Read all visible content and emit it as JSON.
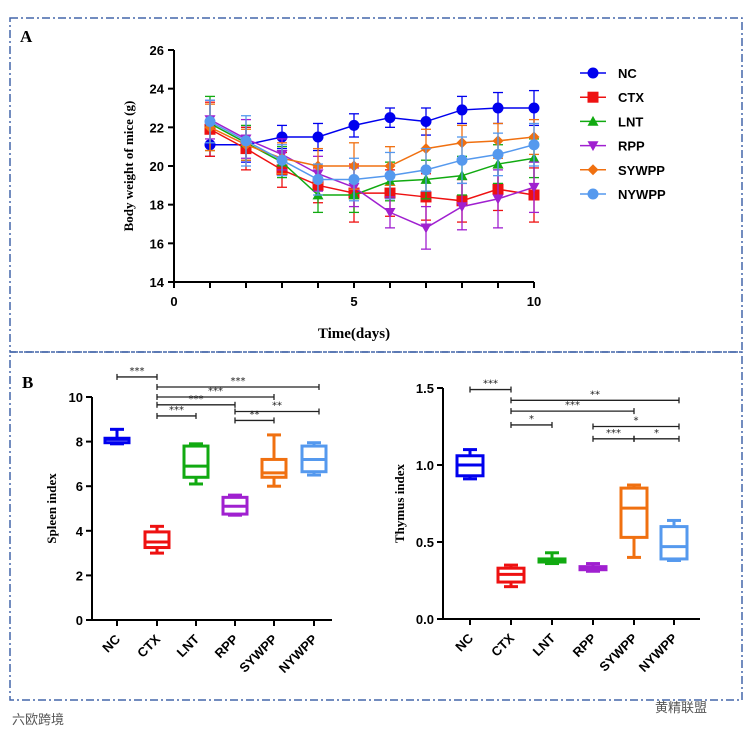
{
  "panel_labels": [
    "A",
    "B"
  ],
  "watermarks": {
    "left": "六欧跨境",
    "right": "黄精联盟"
  },
  "colors": {
    "NC": "#0000ee",
    "CTX": "#ee1111",
    "LNT": "#11aa11",
    "RPP": "#a020d0",
    "SYWPP": "#f07010",
    "NYWPP": "#5599ee",
    "frame": "#4466aa"
  },
  "chart_data": [
    {
      "type": "line",
      "panel": "A",
      "title": "",
      "xlabel": "Time(days)",
      "ylabel": "Body weight of mice (g)",
      "xlim": [
        0,
        10
      ],
      "ylim": [
        14,
        26
      ],
      "xticks": [
        0,
        5,
        10
      ],
      "yticks": [
        14,
        16,
        18,
        20,
        22,
        24,
        26
      ],
      "legend_position": "right",
      "x": [
        1,
        2,
        3,
        4,
        5,
        6,
        7,
        8,
        9,
        10
      ],
      "series": [
        {
          "name": "NC",
          "marker": "circle",
          "values": [
            21.1,
            21.1,
            21.5,
            21.5,
            22.1,
            22.5,
            22.3,
            22.9,
            23.0,
            23.0
          ],
          "error": [
            0.6,
            0.9,
            0.6,
            0.7,
            0.6,
            0.5,
            0.7,
            0.7,
            0.8,
            0.9
          ]
        },
        {
          "name": "CTX",
          "marker": "square",
          "values": [
            21.9,
            20.9,
            19.8,
            19.0,
            18.6,
            18.6,
            18.4,
            18.2,
            18.8,
            18.5
          ],
          "error": [
            1.4,
            1.1,
            0.9,
            0.9,
            1.5,
            1.2,
            1.2,
            1.1,
            1.1,
            1.4
          ]
        },
        {
          "name": "LNT",
          "marker": "triangle-up",
          "values": [
            22.2,
            21.2,
            20.2,
            18.5,
            18.5,
            19.2,
            19.3,
            19.5,
            20.1,
            20.4
          ],
          "error": [
            1.4,
            0.9,
            0.8,
            0.9,
            0.9,
            1.0,
            1.0,
            1.0,
            1.0,
            1.0
          ]
        },
        {
          "name": "RPP",
          "marker": "triangle-down",
          "values": [
            22.4,
            21.4,
            20.6,
            19.6,
            18.9,
            17.6,
            16.8,
            17.9,
            18.3,
            18.9
          ],
          "error": [
            1.0,
            1.0,
            0.8,
            0.9,
            1.0,
            0.8,
            1.1,
            1.2,
            1.5,
            1.3
          ]
        },
        {
          "name": "SYWPP",
          "marker": "diamond",
          "values": [
            22.0,
            21.1,
            20.4,
            20.0,
            20.0,
            20.0,
            20.9,
            21.2,
            21.3,
            21.5
          ],
          "error": [
            1.2,
            0.8,
            0.8,
            0.9,
            1.2,
            1.0,
            1.0,
            0.9,
            0.9,
            0.9
          ]
        },
        {
          "name": "NYWPP",
          "marker": "circle",
          "values": [
            22.3,
            21.3,
            20.3,
            19.3,
            19.3,
            19.5,
            19.8,
            20.3,
            20.6,
            21.1
          ],
          "error": [
            1.1,
            1.3,
            0.8,
            0.8,
            1.1,
            1.2,
            1.1,
            1.2,
            1.1,
            1.1
          ]
        }
      ]
    },
    {
      "type": "box",
      "panel": "B-left",
      "ylabel": "Spleen index",
      "ylim": [
        0,
        10
      ],
      "yticks": [
        0,
        2,
        4,
        6,
        8,
        10
      ],
      "categories": [
        "NC",
        "CTX",
        "LNT",
        "RPP",
        "SYWPP",
        "NYWPP"
      ],
      "boxes": [
        {
          "min": 7.9,
          "q1": 7.95,
          "median": 8.1,
          "q3": 8.15,
          "max": 8.55
        },
        {
          "min": 3.0,
          "q1": 3.25,
          "median": 3.5,
          "q3": 3.95,
          "max": 4.2
        },
        {
          "min": 6.1,
          "q1": 6.4,
          "median": 6.9,
          "q3": 7.8,
          "max": 7.9
        },
        {
          "min": 4.7,
          "q1": 4.75,
          "median": 5.1,
          "q3": 5.5,
          "max": 5.6
        },
        {
          "min": 6.0,
          "q1": 6.4,
          "median": 6.6,
          "q3": 7.2,
          "max": 8.3
        },
        {
          "min": 6.5,
          "q1": 6.65,
          "median": 7.2,
          "q3": 7.8,
          "max": 7.95
        }
      ],
      "significance": [
        {
          "from": 0,
          "to": 1,
          "label": "***",
          "level": 10.9
        },
        {
          "from": 1,
          "to": 5,
          "label": "***",
          "level": 10.45
        },
        {
          "from": 1,
          "to": 4,
          "label": "***",
          "level": 10.0
        },
        {
          "from": 1,
          "to": 3,
          "label": "***",
          "level": 9.65
        },
        {
          "from": 3,
          "to": 5,
          "label": "**",
          "level": 9.35
        },
        {
          "from": 1,
          "to": 2,
          "label": "***",
          "level": 9.15
        },
        {
          "from": 3,
          "to": 4,
          "label": "**",
          "level": 8.95
        }
      ]
    },
    {
      "type": "box",
      "panel": "B-right",
      "ylabel": "Thymus index",
      "ylim": [
        0,
        1.5
      ],
      "yticks": [
        "0.0",
        "0.5",
        "1.0",
        "1.5"
      ],
      "categories": [
        "NC",
        "CTX",
        "LNT",
        "RPP",
        "SYWPP",
        "NYWPP"
      ],
      "boxes": [
        {
          "min": 0.91,
          "q1": 0.93,
          "median": 1.0,
          "q3": 1.06,
          "max": 1.1
        },
        {
          "min": 0.21,
          "q1": 0.24,
          "median": 0.29,
          "q3": 0.33,
          "max": 0.35
        },
        {
          "min": 0.36,
          "q1": 0.37,
          "median": 0.38,
          "q3": 0.39,
          "max": 0.43
        },
        {
          "min": 0.31,
          "q1": 0.32,
          "median": 0.33,
          "q3": 0.34,
          "max": 0.36
        },
        {
          "min": 0.4,
          "q1": 0.53,
          "median": 0.72,
          "q3": 0.85,
          "max": 0.87
        },
        {
          "min": 0.38,
          "q1": 0.39,
          "median": 0.47,
          "q3": 0.6,
          "max": 0.64
        }
      ],
      "significance": [
        {
          "from": 0,
          "to": 1,
          "label": "***",
          "level": 1.49
        },
        {
          "from": 1,
          "to": 5,
          "label": "**",
          "level": 1.42
        },
        {
          "from": 1,
          "to": 4,
          "label": "***",
          "level": 1.35
        },
        {
          "from": 1,
          "to": 2,
          "label": "*",
          "level": 1.26
        },
        {
          "from": 3,
          "to": 5,
          "label": "*",
          "level": 1.25
        },
        {
          "from": 3,
          "to": 4,
          "label": "***",
          "level": 1.17
        },
        {
          "from": 4,
          "to": 5,
          "label": "*",
          "level": 1.17
        }
      ]
    }
  ]
}
